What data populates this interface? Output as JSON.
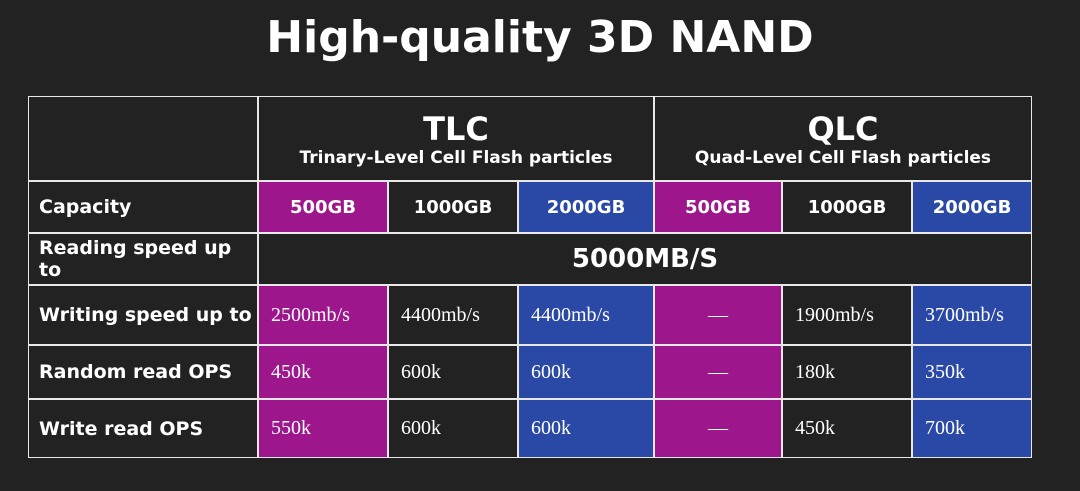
{
  "title": "High-quality 3D NAND",
  "table": {
    "groups": [
      {
        "name": "TLC",
        "subtitle": "Trinary-Level Cell Flash particles"
      },
      {
        "name": "QLC",
        "subtitle": "Quad-Level Cell Flash particles"
      }
    ],
    "rows": [
      {
        "label": "Capacity",
        "cells": [
          "500GB",
          "1000GB",
          "2000GB",
          "500GB",
          "1000GB",
          "2000GB"
        ]
      },
      {
        "label": "Reading speed up to",
        "cells": [
          "5000MB/S"
        ]
      },
      {
        "label": "Writing speed up to",
        "cells": [
          "2500mb/s",
          "4400mb/s",
          "4400mb/s",
          "—",
          "1900mb/s",
          "3700mb/s"
        ]
      },
      {
        "label": "Random read OPS",
        "cells": [
          "450k",
          "600k",
          "600k",
          "—",
          "180k",
          "350k"
        ]
      },
      {
        "label": "Write read OPS",
        "cells": [
          "550k",
          "600k",
          "600k",
          "—",
          "450k",
          "700k"
        ]
      }
    ]
  }
}
